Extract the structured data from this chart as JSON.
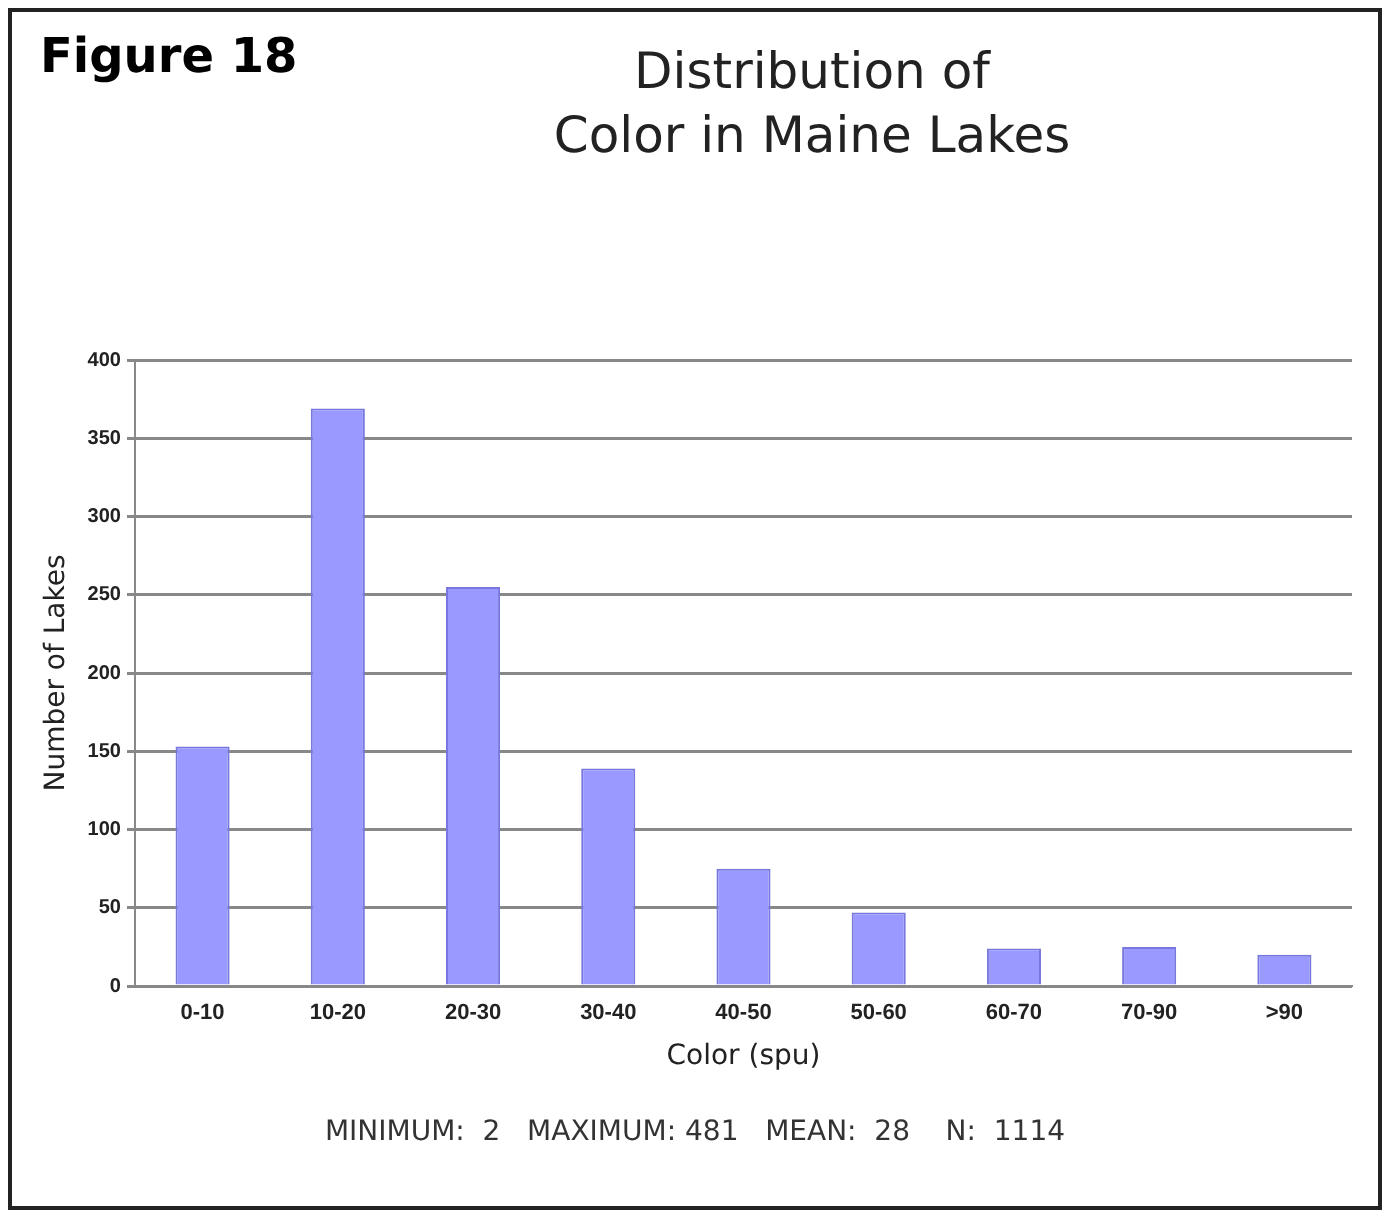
{
  "chart_data": {
    "type": "bar",
    "title": "Distribution of Color in Maine Lakes",
    "xlabel": "Color (spu)",
    "ylabel": "Number of Lakes",
    "categories": [
      "0-10",
      "10-20",
      "20-30",
      "30-40",
      "40-50",
      "50-60",
      "60-70",
      "70-90",
      ">90"
    ],
    "values": [
      153,
      369,
      255,
      139,
      75,
      47,
      24,
      25,
      20
    ],
    "color": "#9999ff",
    "ylim": [
      0,
      400
    ],
    "yticks": [
      0,
      50,
      100,
      150,
      200,
      250,
      300,
      350,
      400
    ],
    "grid": "y",
    "legend": false,
    "annotations": [
      "Figure 18",
      "MINIMUM:  2   MAXIMUM: 481   MEAN:  28    N:  1114"
    ]
  }
}
